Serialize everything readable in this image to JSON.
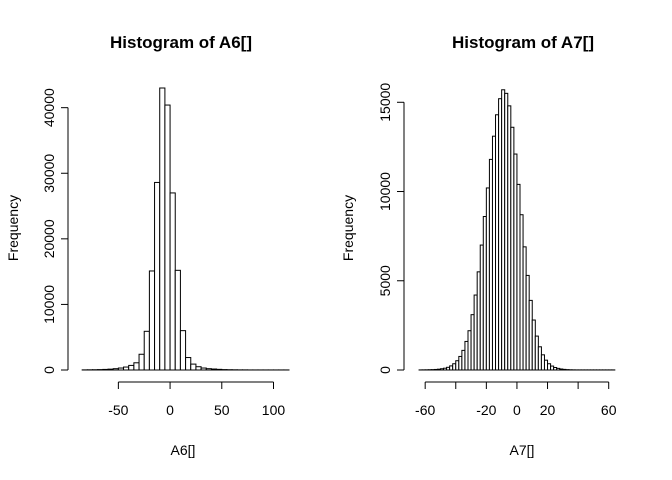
{
  "chart_data": [
    {
      "type": "bar",
      "title": "Histogram of A6[]",
      "xlabel": "A6[]",
      "ylabel": "Frequency",
      "bin_width": 5,
      "bin_start": -85,
      "xlim": [
        -90,
        115
      ],
      "ylim": [
        0,
        43000
      ],
      "x_ticks": [
        -50,
        0,
        50,
        100
      ],
      "x_tick_labels": [
        "-50",
        "0",
        "50",
        "100"
      ],
      "y_ticks": [
        0,
        10000,
        20000,
        30000,
        40000
      ],
      "y_tick_labels": [
        "0",
        "10000",
        "20000",
        "30000",
        "40000"
      ],
      "values": [
        20,
        30,
        40,
        60,
        90,
        130,
        200,
        300,
        450,
        700,
        1100,
        2400,
        5900,
        15100,
        28600,
        43000,
        40400,
        27000,
        15200,
        6000,
        1900,
        900,
        500,
        300,
        200,
        150,
        100,
        60,
        40,
        30,
        20,
        20,
        10,
        10,
        10,
        10,
        10,
        10,
        10,
        10
      ]
    },
    {
      "type": "bar",
      "title": "Histogram of A7[]",
      "xlabel": "A7[]",
      "ylabel": "Frequency",
      "bin_width": 2,
      "bin_start": -64,
      "xlim": [
        -66,
        70
      ],
      "ylim": [
        0,
        15800
      ],
      "x_ticks": [
        -60,
        -40,
        -20,
        0,
        20,
        40,
        60
      ],
      "x_tick_labels": [
        "-60",
        "",
        "-20",
        "0",
        "20",
        "",
        "60"
      ],
      "y_ticks": [
        0,
        5000,
        10000,
        15000
      ],
      "y_tick_labels": [
        "0",
        "5000",
        "10000",
        "15000"
      ],
      "values": [
        5,
        8,
        10,
        15,
        20,
        30,
        45,
        70,
        100,
        150,
        230,
        350,
        520,
        760,
        1100,
        1600,
        2200,
        3100,
        4200,
        5500,
        7000,
        8600,
        10200,
        11800,
        13100,
        14300,
        15200,
        15700,
        15500,
        14800,
        13600,
        12100,
        10400,
        8700,
        6900,
        5300,
        3900,
        2800,
        1900,
        1300,
        850,
        550,
        350,
        220,
        140,
        90,
        55,
        35,
        20,
        12,
        8,
        5,
        5,
        5,
        5,
        5,
        5,
        5,
        5,
        5,
        5,
        5,
        5,
        5
      ]
    }
  ]
}
